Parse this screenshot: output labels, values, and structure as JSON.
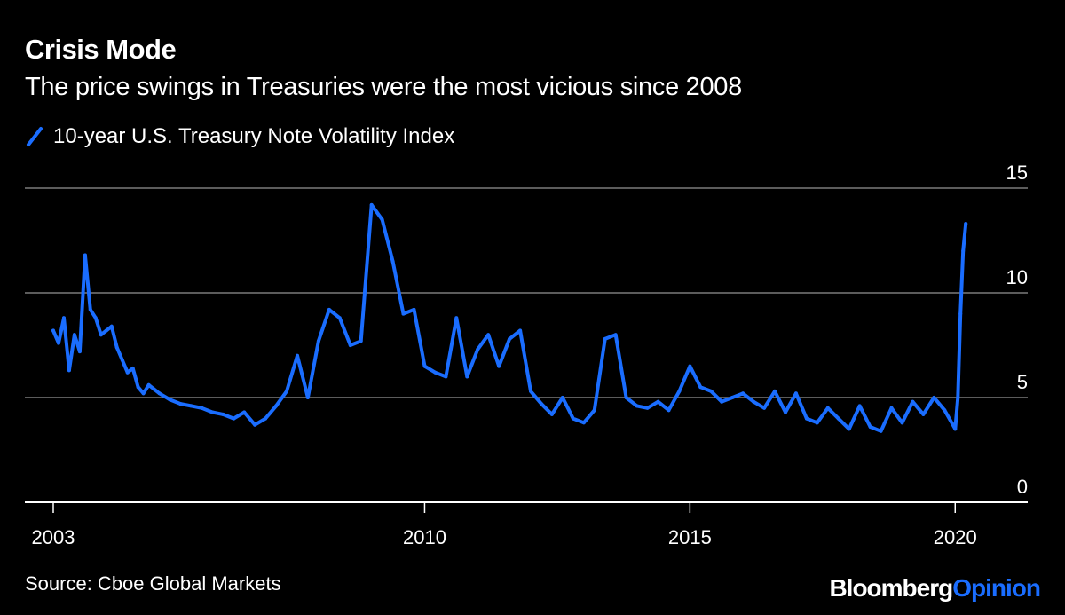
{
  "title": "Crisis Mode",
  "subtitle": "The price swings in Treasuries were the most vicious since 2008",
  "legend": {
    "label": "10-year U.S. Treasury Note Volatility Index"
  },
  "source": "Source: Cboe Global Markets",
  "brand": {
    "part1": "Bloomberg",
    "part2": "Opinion"
  },
  "colors": {
    "line": "#1a6dff",
    "background": "#000000",
    "grid": "#7a7a7a",
    "text": "#ffffff"
  },
  "chart_data": {
    "type": "line",
    "title": "Crisis Mode",
    "series": [
      {
        "name": "10-year U.S. Treasury Note Volatility Index"
      }
    ],
    "ylim": [
      0,
      15
    ],
    "yticks": [
      0,
      5,
      10,
      15
    ],
    "xticks": [
      2003,
      2010,
      2015,
      2020
    ],
    "xlim": [
      2003,
      2021.2
    ],
    "x": [
      2003.0,
      2003.1,
      2003.2,
      2003.3,
      2003.4,
      2003.5,
      2003.6,
      2003.7,
      2003.8,
      2003.9,
      2004.0,
      2004.1,
      2004.2,
      2004.3,
      2004.4,
      2004.5,
      2004.6,
      2004.7,
      2004.8,
      2004.9,
      2005.0,
      2005.2,
      2005.4,
      2005.6,
      2005.8,
      2006.0,
      2006.2,
      2006.4,
      2006.6,
      2006.8,
      2007.0,
      2007.2,
      2007.4,
      2007.6,
      2007.8,
      2008.0,
      2008.2,
      2008.4,
      2008.6,
      2008.8,
      2009.0,
      2009.2,
      2009.4,
      2009.6,
      2009.8,
      2010.0,
      2010.2,
      2010.4,
      2010.6,
      2010.8,
      2011.0,
      2011.2,
      2011.4,
      2011.6,
      2011.8,
      2012.0,
      2012.2,
      2012.4,
      2012.6,
      2012.8,
      2013.0,
      2013.2,
      2013.4,
      2013.6,
      2013.8,
      2014.0,
      2014.2,
      2014.4,
      2014.6,
      2014.8,
      2015.0,
      2015.2,
      2015.4,
      2015.6,
      2015.8,
      2016.0,
      2016.2,
      2016.4,
      2016.6,
      2016.8,
      2017.0,
      2017.2,
      2017.4,
      2017.6,
      2017.8,
      2018.0,
      2018.2,
      2018.4,
      2018.6,
      2018.8,
      2019.0,
      2019.2,
      2019.4,
      2019.6,
      2019.8,
      2020.0,
      2020.05,
      2020.1,
      2020.15,
      2020.2
    ],
    "values": [
      8.2,
      7.6,
      8.8,
      6.3,
      8.0,
      7.2,
      11.8,
      9.2,
      8.8,
      8.0,
      8.2,
      8.4,
      7.4,
      6.8,
      6.2,
      6.4,
      5.5,
      5.2,
      5.6,
      5.4,
      5.2,
      4.9,
      4.7,
      4.6,
      4.5,
      4.3,
      4.2,
      4.0,
      4.3,
      3.7,
      4.0,
      4.6,
      5.3,
      7.0,
      5.0,
      7.7,
      9.2,
      8.8,
      7.5,
      7.7,
      14.2,
      13.5,
      11.5,
      9.0,
      9.2,
      6.5,
      6.2,
      6.0,
      8.8,
      6.0,
      7.3,
      8.0,
      6.5,
      7.8,
      8.2,
      5.3,
      4.7,
      4.2,
      5.0,
      4.0,
      3.8,
      4.4,
      7.8,
      8.0,
      5.0,
      4.6,
      4.5,
      4.8,
      4.4,
      5.3,
      6.5,
      5.5,
      5.3,
      4.8,
      5.0,
      5.2,
      4.8,
      4.5,
      5.3,
      4.3,
      5.2,
      4.0,
      3.8,
      4.5,
      4.0,
      3.5,
      4.6,
      3.6,
      3.4,
      4.5,
      3.8,
      4.8,
      4.2,
      5.0,
      4.4,
      3.5,
      5.0,
      9.0,
      12.0,
      13.3
    ]
  }
}
